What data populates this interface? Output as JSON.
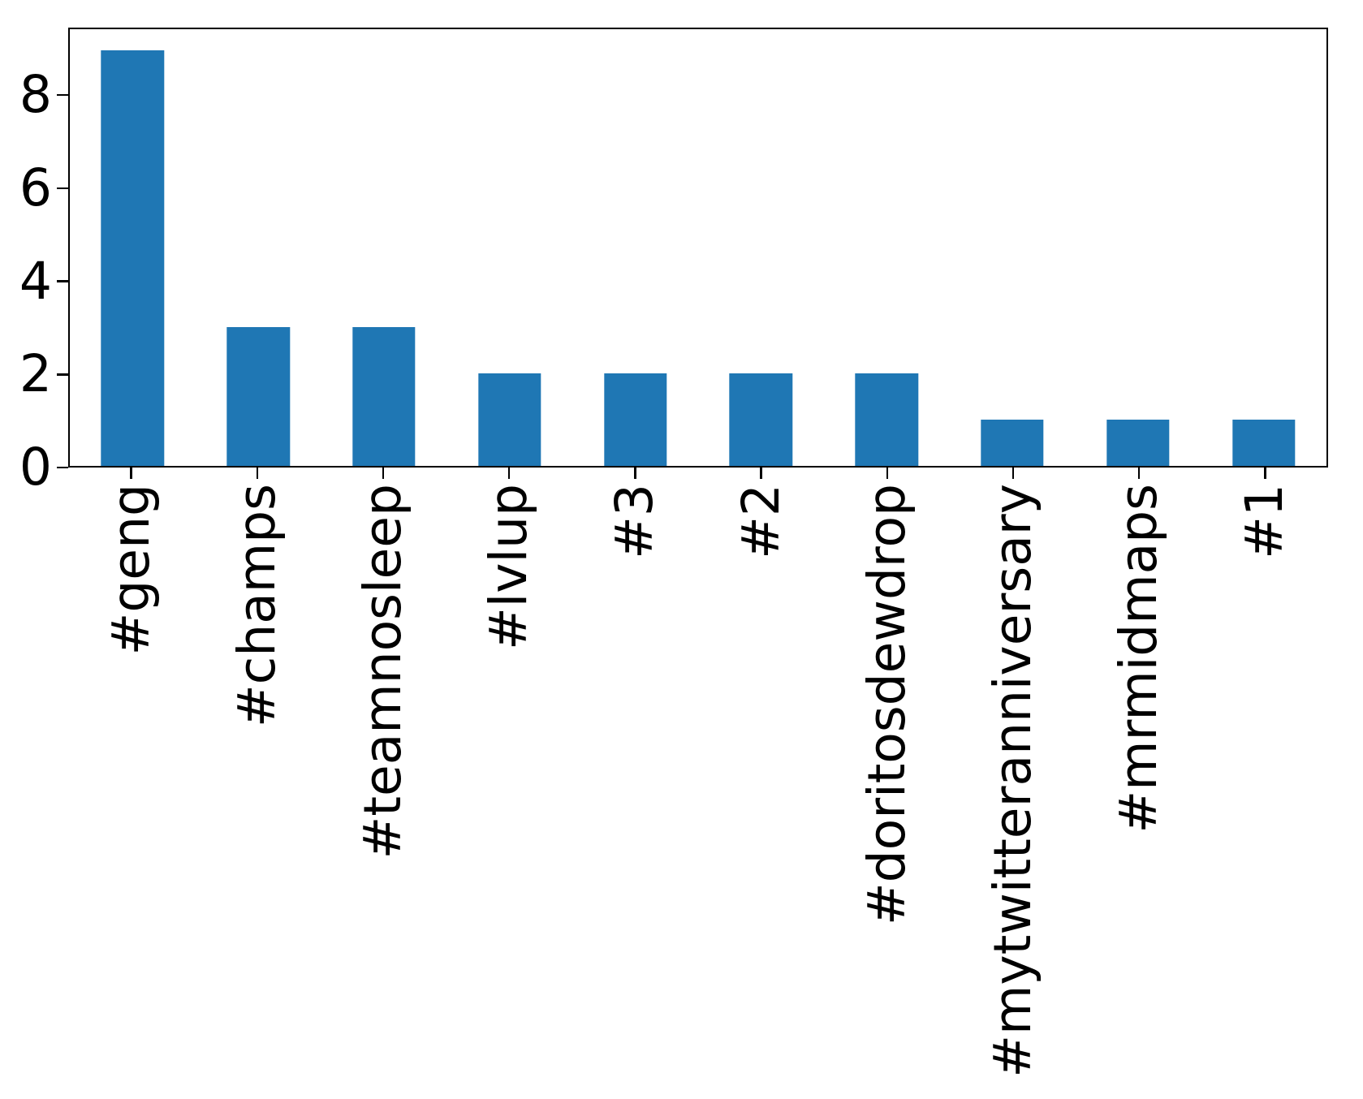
{
  "chart_data": {
    "type": "bar",
    "categories": [
      "#geng",
      "#champs",
      "#teamnosleep",
      "#lvlup",
      "#3",
      "#2",
      "#doritosdewdrop",
      "#mytwitteranniversary",
      "#mrmidmaps",
      "#1"
    ],
    "values": [
      9,
      3,
      3,
      2,
      2,
      2,
      2,
      1,
      1,
      1
    ],
    "title": "",
    "xlabel": "",
    "ylabel": "",
    "ylim": [
      0,
      9.45
    ],
    "yticks": [
      0,
      2,
      4,
      6,
      8
    ],
    "xtick_label_rotation_deg": 90,
    "bar_color": "#1f77b4",
    "bar_width_fraction": 0.5,
    "grid": false,
    "legend_position": "none",
    "spine_color": "#000000",
    "text_color": "#000000",
    "background_color": "#ffffff"
  }
}
